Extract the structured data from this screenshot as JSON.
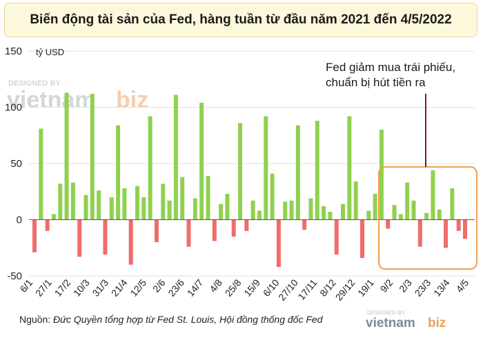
{
  "title": "Biến động tài sản của Fed, hàng tuần từ đầu năm 2021 đến 4/5/2022",
  "unit_label": "tỷ USD",
  "annotation": [
    "Fed giảm mua trái phiếu,",
    "chuẩn bị hút tiền ra"
  ],
  "source_label": "Nguồn:",
  "source_text": "Đức Quyền tổng hợp từ Fed St. Louis, Hội đồng thống đốc Fed",
  "watermark": {
    "designed_by": "DESIGNED BY",
    "brand_a": "vietnam",
    "brand_b": "biz"
  },
  "colors": {
    "positive": "#8fd14f",
    "negative": "#f26b6b",
    "highlight": "#f0a050",
    "pointer": "#7a1530"
  },
  "chart_data": {
    "type": "bar",
    "ylim": [
      -50,
      150
    ],
    "yticks": [
      -50,
      0,
      50,
      100,
      150
    ],
    "xtick_labels": [
      "6/1",
      "27/1",
      "17/2",
      "10/3",
      "31/3",
      "21/4",
      "12/5",
      "2/6",
      "23/6",
      "14/7",
      "4/8",
      "25/8",
      "15/9",
      "6/10",
      "27/10",
      "17/11",
      "8/12",
      "29/12",
      "19/1",
      "9/2",
      "2/3",
      "23/3",
      "13/4",
      "4/5"
    ],
    "values": [
      -29,
      81,
      -10,
      5,
      32,
      113,
      33,
      -33,
      22,
      112,
      26,
      -31,
      20,
      84,
      28,
      -40,
      30,
      20,
      92,
      -20,
      32,
      17,
      111,
      38,
      -24,
      19,
      104,
      39,
      -19,
      14,
      23,
      -15,
      86,
      -10,
      17,
      8,
      92,
      41,
      -42,
      16,
      17,
      84,
      -9,
      19,
      88,
      12,
      7,
      -31,
      14,
      92,
      34,
      -34,
      8,
      23,
      80,
      -8,
      13,
      5,
      33,
      17,
      -24,
      6,
      44,
      9,
      -25,
      28,
      -10,
      -17
    ]
  }
}
